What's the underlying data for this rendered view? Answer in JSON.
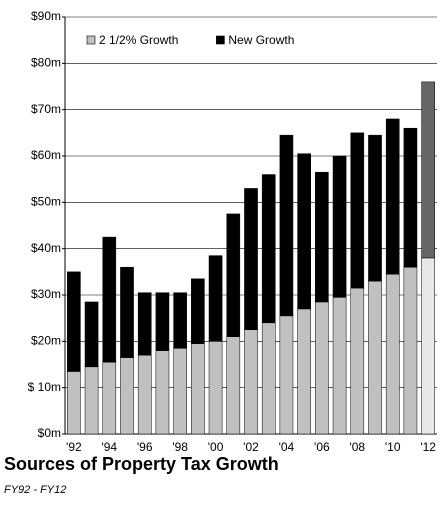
{
  "chart_data": {
    "type": "stacked_bar",
    "title": "Sources of Property Tax Growth",
    "subtitle": "FY92 - FY12",
    "categories": [
      "'92",
      null,
      "'94",
      null,
      "'96",
      null,
      "'98",
      null,
      "'00",
      null,
      "'02",
      null,
      "'04",
      null,
      "'06",
      null,
      "'08",
      null,
      "'10",
      null,
      "'12"
    ],
    "series": [
      {
        "name": "2 1/2% Growth",
        "color": "#c0c0c0",
        "point_colors": {
          "20": "#e8e8e8"
        },
        "values": [
          13.5,
          14.5,
          15.5,
          16.5,
          17,
          18,
          18.5,
          19.5,
          20,
          21,
          22.5,
          24,
          25.5,
          27,
          28.5,
          29.5,
          31.5,
          33,
          34.5,
          36,
          38
        ]
      },
      {
        "name": "New Growth",
        "color": "#000000",
        "point_colors": {
          "20": "#666666"
        },
        "values": [
          21.5,
          14,
          27,
          19.5,
          13.5,
          12.5,
          12,
          14,
          18.5,
          26.5,
          30.5,
          32,
          39,
          33.5,
          28,
          30.5,
          33.5,
          31.5,
          33.5,
          30,
          38
        ]
      }
    ],
    "ylim": [
      0,
      90
    ],
    "yticks": [
      {
        "value": 0,
        "label": "$0m"
      },
      {
        "value": 10,
        "label": "$ 10m"
      },
      {
        "value": 20,
        "label": "$20m"
      },
      {
        "value": 30,
        "label": "$30m"
      },
      {
        "value": 40,
        "label": "$40m"
      },
      {
        "value": 50,
        "label": "$50m"
      },
      {
        "value": 60,
        "label": "$60m"
      },
      {
        "value": 70,
        "label": "$70m"
      },
      {
        "value": 80,
        "label": "$80m"
      },
      {
        "value": 90,
        "label": "$90m"
      }
    ],
    "grid": true,
    "legend": "top-left"
  }
}
